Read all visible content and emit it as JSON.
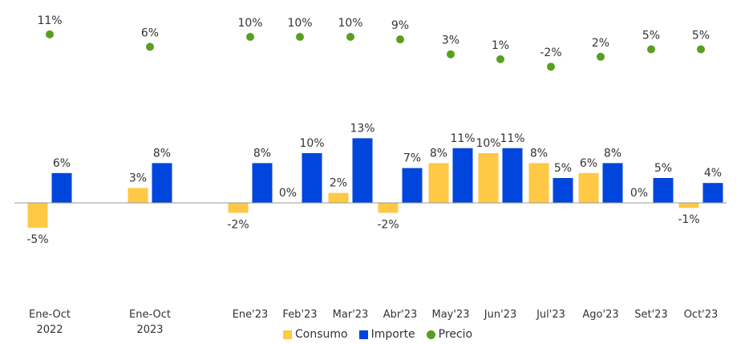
{
  "chart_data": {
    "type": "bar",
    "categories": [
      "Ene-Oct 2022",
      "Ene-Oct 2023",
      "Ene'23",
      "Feb'23",
      "Mar'23",
      "Abr'23",
      "May'23",
      "Jun'23",
      "Jul'23",
      "Ago'23",
      "Set'23",
      "Oct'23"
    ],
    "category_lines": [
      [
        "Ene-Oct",
        "2022"
      ],
      [
        "Ene-Oct",
        "2023"
      ],
      [
        "Ene'23"
      ],
      [
        "Feb'23"
      ],
      [
        "Mar'23"
      ],
      [
        "Abr'23"
      ],
      [
        "May'23"
      ],
      [
        "Jun'23"
      ],
      [
        "Jul'23"
      ],
      [
        "Ago'23"
      ],
      [
        "Set'23"
      ],
      [
        "Oct'23"
      ]
    ],
    "series": [
      {
        "name": "Consumo",
        "kind": "bar",
        "color": "#FFC845",
        "values": [
          -5,
          3,
          -2,
          0,
          2,
          -2,
          8,
          10,
          8,
          6,
          0,
          -1
        ],
        "labels": [
          "-5%",
          "3%",
          "-2%",
          "0%",
          "2%",
          "-2%",
          "8%",
          "10%",
          "8%",
          "6%",
          "0%",
          "-1%"
        ]
      },
      {
        "name": "Importe",
        "kind": "bar",
        "color": "#0046DC",
        "values": [
          6,
          8,
          8,
          10,
          13,
          7,
          11,
          11,
          5,
          8,
          5,
          4
        ],
        "labels": [
          "6%",
          "8%",
          "8%",
          "10%",
          "13%",
          "7%",
          "11%",
          "11%",
          "5%",
          "8%",
          "5%",
          "4%"
        ]
      },
      {
        "name": "Precio",
        "kind": "dot",
        "color": "#5A9E1E",
        "values": [
          11,
          6,
          10,
          10,
          10,
          9,
          3,
          1,
          -2,
          2,
          5,
          5
        ],
        "labels": [
          "11%",
          "6%",
          "10%",
          "10%",
          "10%",
          "9%",
          "3%",
          "1%",
          "-2%",
          "2%",
          "5%",
          "5%"
        ]
      }
    ],
    "legend": [
      "Consumo",
      "Importe",
      "Precio"
    ],
    "legend_position": "bottom",
    "grid": false
  }
}
